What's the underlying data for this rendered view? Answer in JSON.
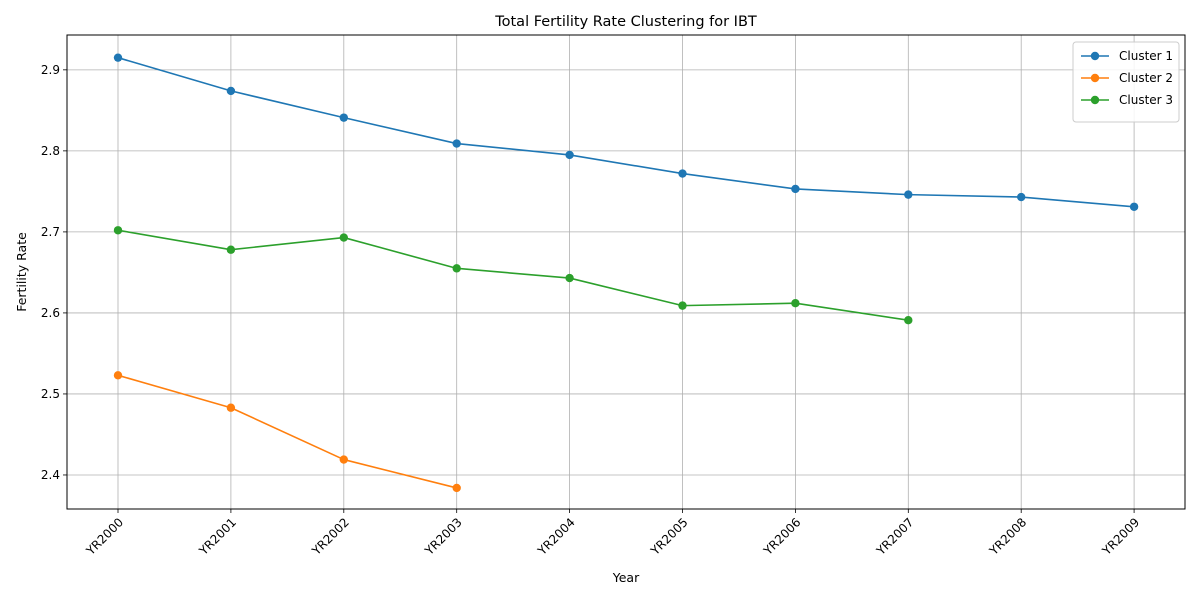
{
  "chart_data": {
    "type": "line",
    "title": "Total Fertility Rate Clustering for IBT",
    "xlabel": "Year",
    "ylabel": "Fertility Rate",
    "categories": [
      "YR2000",
      "YR2001",
      "YR2002",
      "YR2003",
      "YR2004",
      "YR2005",
      "YR2006",
      "YR2007",
      "YR2008",
      "YR2009"
    ],
    "ylim": [
      2.358,
      2.943
    ],
    "yticks": [
      2.4,
      2.5,
      2.6,
      2.7,
      2.8,
      2.9
    ],
    "grid": true,
    "legend_position": "top-right",
    "series": [
      {
        "name": "Cluster 1",
        "color": "#1f77b4",
        "values": [
          2.915,
          2.874,
          2.841,
          2.809,
          2.795,
          2.772,
          2.753,
          2.746,
          2.743,
          2.731
        ]
      },
      {
        "name": "Cluster 2",
        "color": "#ff7f0e",
        "values": [
          2.523,
          2.483,
          2.419,
          2.384,
          null,
          null,
          null,
          null,
          null,
          null
        ]
      },
      {
        "name": "Cluster 3",
        "color": "#2ca02c",
        "values": [
          2.702,
          2.678,
          2.693,
          2.655,
          2.643,
          2.609,
          2.612,
          2.591,
          null,
          null
        ]
      }
    ]
  }
}
